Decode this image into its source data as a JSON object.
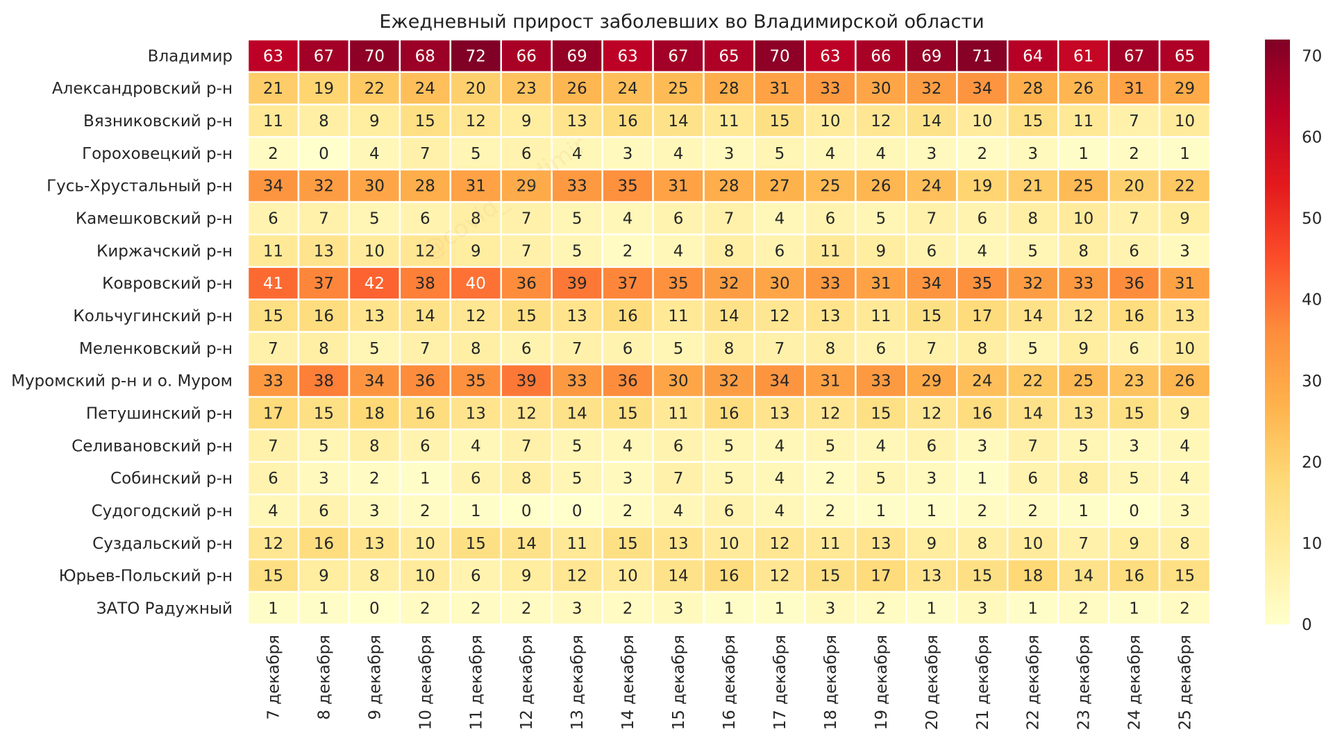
{
  "chart_data": {
    "type": "heatmap",
    "title": "Ежедневный прирост заболевших во Владимирской области",
    "xlabel": "",
    "ylabel": "",
    "columns": [
      "7 декабря",
      "8 декабря",
      "9 декабря",
      "10 декабря",
      "11 декабря",
      "12 декабря",
      "13 декабря",
      "14 декабря",
      "15 декабря",
      "16 декабря",
      "17 декабря",
      "18 декабря",
      "19 декабря",
      "20 декабря",
      "21 декабря",
      "22 декабря",
      "23 декабря",
      "24 декабря",
      "25 декабря"
    ],
    "rows": [
      "Владимир",
      "Александровский р-н",
      "Вязниковский р-н",
      "Гороховецкий р-н",
      "Гусь-Хрустальный р-н",
      "Камешковский р-н",
      "Киржачский р-н",
      "Ковровский р-н",
      "Кольчугинский р-н",
      "Меленковский р-н",
      "Муромский р-н и о. Муром",
      "Петушинский р-н",
      "Селивановский р-н",
      "Собинский р-н",
      "Судогодский р-н",
      "Суздальский р-н",
      "Юрьев-Польский р-н",
      "ЗАТО Радужный"
    ],
    "values": [
      [
        63,
        67,
        70,
        68,
        72,
        66,
        69,
        63,
        67,
        65,
        70,
        63,
        66,
        69,
        71,
        64,
        61,
        67,
        65
      ],
      [
        21,
        19,
        22,
        24,
        20,
        23,
        26,
        24,
        25,
        28,
        31,
        33,
        30,
        32,
        34,
        28,
        26,
        31,
        29
      ],
      [
        11,
        8,
        9,
        15,
        12,
        9,
        13,
        16,
        14,
        11,
        15,
        10,
        12,
        14,
        10,
        15,
        11,
        7,
        10
      ],
      [
        2,
        0,
        4,
        7,
        5,
        6,
        4,
        3,
        4,
        3,
        5,
        4,
        4,
        3,
        2,
        3,
        1,
        2,
        1
      ],
      [
        34,
        32,
        30,
        28,
        31,
        29,
        33,
        35,
        31,
        28,
        27,
        25,
        26,
        24,
        19,
        21,
        25,
        20,
        22
      ],
      [
        6,
        7,
        5,
        6,
        8,
        7,
        5,
        4,
        6,
        7,
        4,
        6,
        5,
        7,
        6,
        8,
        10,
        7,
        9
      ],
      [
        11,
        13,
        10,
        12,
        9,
        7,
        5,
        2,
        4,
        8,
        6,
        11,
        9,
        6,
        4,
        5,
        8,
        6,
        3
      ],
      [
        41,
        37,
        42,
        38,
        40,
        36,
        39,
        37,
        35,
        32,
        30,
        33,
        31,
        34,
        35,
        32,
        33,
        36,
        31
      ],
      [
        15,
        16,
        13,
        14,
        12,
        15,
        13,
        16,
        11,
        14,
        12,
        13,
        11,
        15,
        17,
        14,
        12,
        16,
        13
      ],
      [
        7,
        8,
        5,
        7,
        8,
        6,
        7,
        6,
        5,
        8,
        7,
        8,
        6,
        7,
        8,
        5,
        9,
        6,
        10
      ],
      [
        33,
        38,
        34,
        36,
        35,
        39,
        33,
        36,
        30,
        32,
        34,
        31,
        33,
        29,
        24,
        22,
        25,
        23,
        26
      ],
      [
        17,
        15,
        18,
        16,
        13,
        12,
        14,
        15,
        11,
        16,
        13,
        12,
        15,
        12,
        16,
        14,
        13,
        15,
        9
      ],
      [
        7,
        5,
        8,
        6,
        4,
        7,
        5,
        4,
        6,
        5,
        4,
        5,
        4,
        6,
        3,
        7,
        5,
        3,
        4
      ],
      [
        6,
        3,
        2,
        1,
        6,
        8,
        5,
        3,
        7,
        5,
        4,
        2,
        5,
        3,
        1,
        6,
        8,
        5,
        4
      ],
      [
        4,
        6,
        3,
        2,
        1,
        0,
        0,
        2,
        4,
        6,
        4,
        2,
        1,
        1,
        2,
        2,
        1,
        0,
        3
      ],
      [
        12,
        16,
        13,
        10,
        15,
        14,
        11,
        15,
        13,
        10,
        12,
        11,
        13,
        9,
        8,
        10,
        7,
        9,
        8
      ],
      [
        15,
        9,
        8,
        10,
        6,
        9,
        12,
        10,
        14,
        16,
        12,
        15,
        17,
        13,
        15,
        18,
        14,
        16,
        15
      ],
      [
        1,
        1,
        0,
        2,
        2,
        2,
        3,
        2,
        3,
        1,
        1,
        3,
        2,
        1,
        3,
        1,
        2,
        1,
        2
      ]
    ],
    "vmin": 0,
    "vmax": 72,
    "colormap": "YlOrRd",
    "colorbar_ticks": [
      0,
      10,
      20,
      30,
      40,
      50,
      60,
      70
    ],
    "annotated": true
  },
  "watermark": "@covid_vladimir"
}
